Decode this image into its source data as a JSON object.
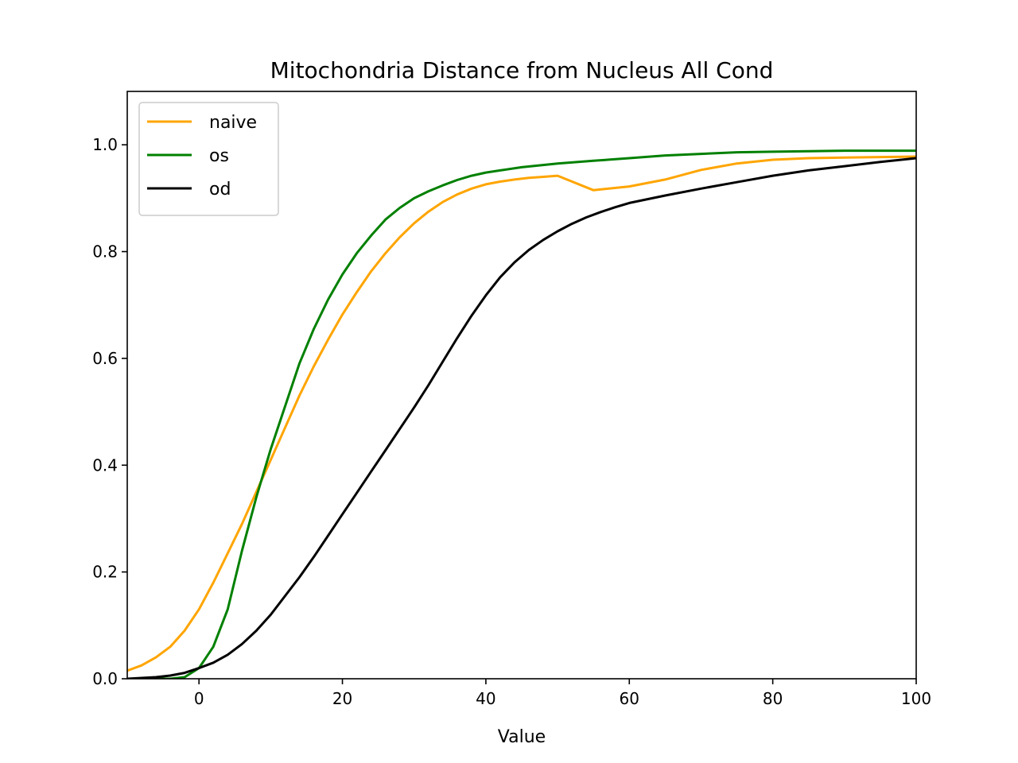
{
  "chart_data": {
    "type": "line",
    "title": "Mitochondria Distance from Nucleus All Cond",
    "xlabel": "Value",
    "ylabel": "",
    "xlim": [
      -10,
      100
    ],
    "ylim": [
      0,
      1.1
    ],
    "xticks": [
      0,
      20,
      40,
      60,
      80,
      100
    ],
    "yticks": [
      0.0,
      0.2,
      0.4,
      0.6,
      0.8,
      1.0
    ],
    "xtick_labels": [
      "0",
      "20",
      "40",
      "60",
      "80",
      "100"
    ],
    "ytick_labels": [
      "0.0",
      "0.2",
      "0.4",
      "0.6",
      "0.8",
      "1.0"
    ],
    "grid": false,
    "legend": "upper-left",
    "series": [
      {
        "name": "naive",
        "color": "#ffa500",
        "x": [
          -10,
          -8,
          -6,
          -4,
          -2,
          0,
          2,
          4,
          6,
          8,
          10,
          12,
          14,
          16,
          18,
          20,
          22,
          24,
          26,
          28,
          30,
          32,
          34,
          36,
          38,
          40,
          42,
          44,
          46,
          48,
          50,
          55,
          60,
          65,
          70,
          75,
          80,
          85,
          90,
          95,
          100
        ],
        "y": [
          0.015,
          0.025,
          0.04,
          0.06,
          0.09,
          0.13,
          0.18,
          0.235,
          0.29,
          0.35,
          0.41,
          0.47,
          0.53,
          0.585,
          0.635,
          0.682,
          0.724,
          0.763,
          0.797,
          0.827,
          0.853,
          0.875,
          0.893,
          0.907,
          0.918,
          0.926,
          0.931,
          0.935,
          0.938,
          0.94,
          0.942,
          0.915,
          0.922,
          0.935,
          0.953,
          0.965,
          0.972,
          0.975,
          0.976,
          0.977,
          0.978
        ]
      },
      {
        "name": "os",
        "color": "#008000",
        "x": [
          -10,
          -4,
          -2,
          0,
          2,
          4,
          6,
          8,
          10,
          12,
          14,
          16,
          18,
          20,
          22,
          24,
          26,
          28,
          30,
          32,
          34,
          36,
          38,
          40,
          42,
          45,
          50,
          55,
          60,
          65,
          70,
          75,
          80,
          85,
          90,
          95,
          100
        ],
        "y": [
          0.0,
          0.0,
          0.003,
          0.02,
          0.06,
          0.13,
          0.24,
          0.34,
          0.43,
          0.51,
          0.59,
          0.655,
          0.71,
          0.757,
          0.797,
          0.83,
          0.86,
          0.882,
          0.9,
          0.913,
          0.924,
          0.934,
          0.942,
          0.948,
          0.952,
          0.958,
          0.965,
          0.97,
          0.975,
          0.98,
          0.983,
          0.986,
          0.987,
          0.988,
          0.989,
          0.989,
          0.989
        ]
      },
      {
        "name": "od",
        "color": "#000000",
        "x": [
          -10,
          -6,
          -4,
          -2,
          0,
          2,
          4,
          6,
          8,
          10,
          12,
          14,
          16,
          18,
          20,
          22,
          24,
          26,
          28,
          30,
          32,
          34,
          36,
          38,
          40,
          42,
          44,
          46,
          48,
          50,
          52,
          54,
          56,
          58,
          60,
          65,
          70,
          75,
          80,
          85,
          90,
          95,
          100
        ],
        "y": [
          0.0,
          0.003,
          0.006,
          0.011,
          0.02,
          0.03,
          0.045,
          0.065,
          0.09,
          0.12,
          0.155,
          0.19,
          0.228,
          0.268,
          0.308,
          0.348,
          0.388,
          0.428,
          0.468,
          0.508,
          0.55,
          0.594,
          0.638,
          0.68,
          0.718,
          0.752,
          0.78,
          0.803,
          0.822,
          0.838,
          0.852,
          0.864,
          0.874,
          0.883,
          0.891,
          0.905,
          0.918,
          0.93,
          0.942,
          0.952,
          0.96,
          0.968,
          0.975
        ]
      }
    ]
  }
}
